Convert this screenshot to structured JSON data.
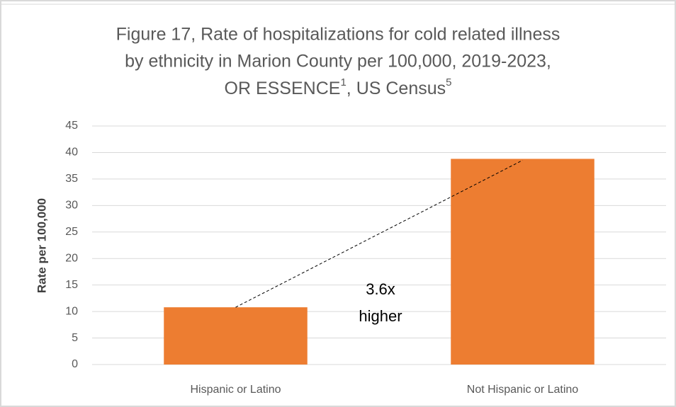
{
  "chart_data": {
    "type": "bar",
    "title": [
      "Figure 17, Rate of hospitalizations for cold related illness",
      "by ethnicity in Marion County per 100,000, 2019-2023,",
      [
        "OR ESSENCE",
        "1",
        ", US Census",
        "5"
      ]
    ],
    "y_label": "Rate per 100,000",
    "categories": [
      "Hispanic or Latino",
      "Not Hispanic or Latino"
    ],
    "values": [
      10.8,
      38.8
    ],
    "color": "#ed7d31",
    "ylim": [
      0,
      45
    ],
    "yticks": [
      0,
      5,
      10,
      15,
      20,
      25,
      30,
      35,
      40,
      45
    ],
    "grid": true,
    "annotation": [
      "3.6x",
      "higher"
    ]
  }
}
